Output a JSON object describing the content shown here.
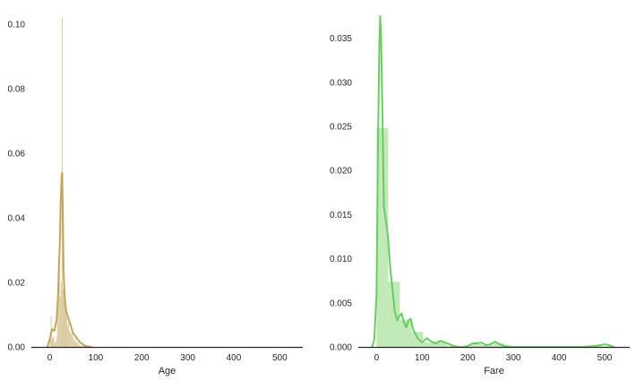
{
  "chart_data": [
    {
      "type": "histogram",
      "title": "",
      "xlabel": "Age",
      "ylabel": "",
      "xlim": [
        -40,
        550
      ],
      "ylim": [
        0,
        0.1025
      ],
      "xticks": [
        0,
        100,
        200,
        300,
        400,
        500
      ],
      "yticks": [
        0.0,
        0.02,
        0.04,
        0.06,
        0.08,
        0.1
      ],
      "ytick_labels": [
        "0.00",
        "0.02",
        "0.04",
        "0.06",
        "0.08",
        "0.10"
      ],
      "grid": false,
      "hist_color": "#d8c99c",
      "kde_color": "#c4a55e",
      "bins": [
        {
          "x0": 0,
          "x1": 2,
          "density": 0.0045
        },
        {
          "x0": 2,
          "x1": 4,
          "density": 0.0095
        },
        {
          "x0": 4,
          "x1": 6,
          "density": 0.0025
        },
        {
          "x0": 6,
          "x1": 8,
          "density": 0.0035
        },
        {
          "x0": 8,
          "x1": 10,
          "density": 0.003
        },
        {
          "x0": 10,
          "x1": 12,
          "density": 0.0015
        },
        {
          "x0": 12,
          "x1": 14,
          "density": 0.0015
        },
        {
          "x0": 14,
          "x1": 16,
          "density": 0.003
        },
        {
          "x0": 16,
          "x1": 18,
          "density": 0.012
        },
        {
          "x0": 18,
          "x1": 20,
          "density": 0.021
        },
        {
          "x0": 20,
          "x1": 22,
          "density": 0.026
        },
        {
          "x0": 22,
          "x1": 24,
          "density": 0.0155
        },
        {
          "x0": 24,
          "x1": 26,
          "density": 0.02
        },
        {
          "x0": 26,
          "x1": 28,
          "density": 0.102
        },
        {
          "x0": 28,
          "x1": 30,
          "density": 0.018
        },
        {
          "x0": 30,
          "x1": 32,
          "density": 0.016
        },
        {
          "x0": 32,
          "x1": 34,
          "density": 0.0135
        },
        {
          "x0": 34,
          "x1": 36,
          "density": 0.0125
        },
        {
          "x0": 36,
          "x1": 38,
          "density": 0.009
        },
        {
          "x0": 38,
          "x1": 40,
          "density": 0.0065
        },
        {
          "x0": 40,
          "x1": 42,
          "density": 0.0075
        },
        {
          "x0": 42,
          "x1": 44,
          "density": 0.005
        },
        {
          "x0": 44,
          "x1": 46,
          "density": 0.0045
        },
        {
          "x0": 46,
          "x1": 48,
          "density": 0.004
        },
        {
          "x0": 48,
          "x1": 50,
          "density": 0.0045
        },
        {
          "x0": 50,
          "x1": 52,
          "density": 0.003
        },
        {
          "x0": 52,
          "x1": 54,
          "density": 0.002
        },
        {
          "x0": 54,
          "x1": 56,
          "density": 0.0025
        },
        {
          "x0": 56,
          "x1": 58,
          "density": 0.0015
        },
        {
          "x0": 58,
          "x1": 60,
          "density": 0.0015
        },
        {
          "x0": 60,
          "x1": 62,
          "density": 0.0012
        },
        {
          "x0": 62,
          "x1": 64,
          "density": 0.0008
        },
        {
          "x0": 64,
          "x1": 66,
          "density": 0.0006
        },
        {
          "x0": 66,
          "x1": 70,
          "density": 0.0004
        },
        {
          "x0": 70,
          "x1": 74,
          "density": 0.0003
        },
        {
          "x0": 74,
          "x1": 80,
          "density": 0.0002
        }
      ],
      "kde": {
        "x": [
          -5,
          0,
          5,
          10,
          15,
          18,
          20,
          22,
          24,
          26,
          27,
          28,
          29,
          30,
          32,
          34,
          36,
          40,
          45,
          50,
          55,
          60,
          65,
          70,
          75,
          80,
          85,
          90
        ],
        "y": [
          0.0,
          0.0025,
          0.0055,
          0.005,
          0.0085,
          0.016,
          0.025,
          0.033,
          0.046,
          0.053,
          0.054,
          0.046,
          0.035,
          0.024,
          0.017,
          0.013,
          0.011,
          0.009,
          0.007,
          0.0045,
          0.0035,
          0.0025,
          0.0015,
          0.001,
          0.0005,
          0.0002,
          0.0001,
          0.0
        ]
      }
    },
    {
      "type": "histogram",
      "title": "",
      "xlabel": "Fare",
      "ylabel": "",
      "xlim": [
        -40,
        555
      ],
      "ylim": [
        0,
        0.0375
      ],
      "xticks": [
        0,
        100,
        200,
        300,
        400,
        500
      ],
      "yticks": [
        0.0,
        0.005,
        0.01,
        0.015,
        0.02,
        0.025,
        0.03,
        0.035
      ],
      "ytick_labels": [
        "0.000",
        "0.005",
        "0.010",
        "0.015",
        "0.020",
        "0.025",
        "0.030",
        "0.035"
      ],
      "grid": false,
      "hist_color": "#bfe8b4",
      "kde_color": "#6acc65",
      "bins": [
        {
          "x0": 0,
          "x1": 25.6,
          "density": 0.0248
        },
        {
          "x0": 25.6,
          "x1": 51.2,
          "density": 0.0074
        },
        {
          "x0": 51.2,
          "x1": 76.8,
          "density": 0.0031
        },
        {
          "x0": 76.8,
          "x1": 102.4,
          "density": 0.0017
        },
        {
          "x0": 102.4,
          "x1": 128,
          "density": 0.0005
        },
        {
          "x0": 128,
          "x1": 153.6,
          "density": 0.0006
        },
        {
          "x0": 153.6,
          "x1": 179.2,
          "density": 0.0001
        },
        {
          "x0": 179.2,
          "x1": 204.8,
          "density": 0.0
        },
        {
          "x0": 204.8,
          "x1": 230.4,
          "density": 0.0003
        },
        {
          "x0": 230.4,
          "x1": 256,
          "density": 0.0002
        },
        {
          "x0": 256,
          "x1": 281.6,
          "density": 0.0004
        },
        {
          "x0": 281.6,
          "x1": 307.2,
          "density": 0.0
        },
        {
          "x0": 307.2,
          "x1": 332.8,
          "density": 0.0
        },
        {
          "x0": 332.8,
          "x1": 358.4,
          "density": 0.0
        },
        {
          "x0": 358.4,
          "x1": 384,
          "density": 0.0
        },
        {
          "x0": 384,
          "x1": 409.6,
          "density": 0.0
        },
        {
          "x0": 409.6,
          "x1": 435.2,
          "density": 0.0
        },
        {
          "x0": 435.2,
          "x1": 460.8,
          "density": 0.0
        },
        {
          "x0": 460.8,
          "x1": 486.4,
          "density": 0.0
        },
        {
          "x0": 486.4,
          "x1": 512,
          "density": 0.0001
        }
      ],
      "kde": {
        "x": [
          -10,
          -5,
          0,
          3,
          6,
          8,
          10,
          13,
          16,
          20,
          25,
          30,
          35,
          40,
          45,
          50,
          55,
          60,
          65,
          70,
          75,
          80,
          90,
          100,
          110,
          120,
          130,
          140,
          150,
          160,
          170,
          180,
          190,
          200,
          210,
          220,
          230,
          240,
          250,
          260,
          270,
          280,
          300,
          350,
          400,
          450,
          480,
          500,
          510,
          520
        ],
        "y": [
          0.0,
          0.0008,
          0.006,
          0.022,
          0.034,
          0.0375,
          0.035,
          0.026,
          0.016,
          0.0145,
          0.0125,
          0.009,
          0.0065,
          0.004,
          0.003,
          0.0035,
          0.0038,
          0.0028,
          0.0022,
          0.003,
          0.0032,
          0.002,
          0.001,
          0.0005,
          0.001,
          0.0006,
          0.0004,
          0.0007,
          0.0005,
          0.0003,
          0.0001,
          0.0,
          0.0,
          0.0001,
          0.0004,
          0.0004,
          0.0005,
          0.0002,
          0.0003,
          0.0006,
          0.0003,
          0.0001,
          0.0,
          0.0,
          0.0,
          0.0,
          0.0001,
          0.0003,
          0.0002,
          0.0
        ]
      }
    }
  ]
}
